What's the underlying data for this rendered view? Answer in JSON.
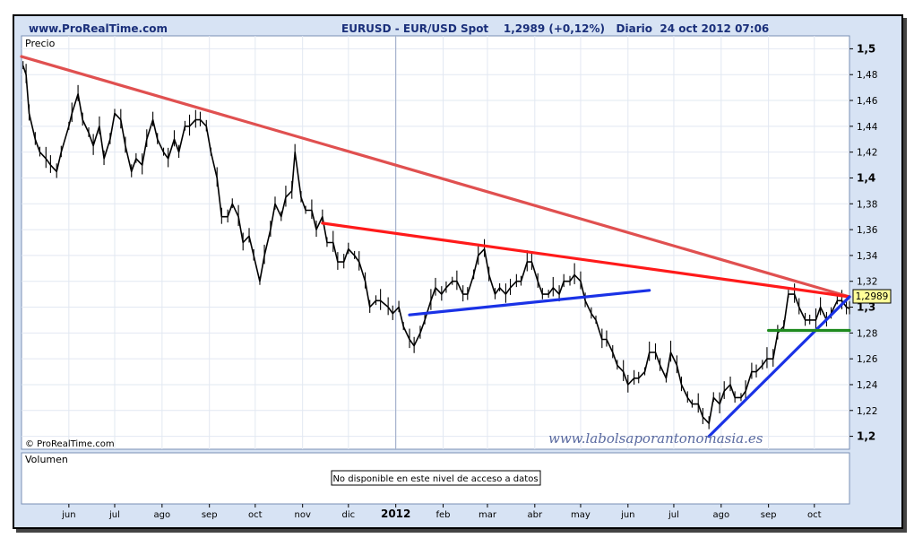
{
  "header": {
    "site": "www.ProRealTime.com",
    "title": "EURUSD - EUR/USD Spot    1,2989 (+0,12%)   Diario  24 oct 2012 07:06"
  },
  "price_panel": {
    "label": "Precio",
    "copyright": "© ProRealTime.com",
    "current_price_tag": "1,2989",
    "watermark": "www.labolsaporantonomasia.es"
  },
  "volume_panel": {
    "label": "Volumen",
    "notice": "No disponible en este nivel de acceso a datos"
  },
  "colors": {
    "background": "#d7e3f4",
    "plot_bg": "#ffffff",
    "price": "#000000",
    "trend_long": "#e05050",
    "trend_red": "#ff1a1a",
    "support_blue": "#1a32e6",
    "support_green": "#1f8a1f"
  },
  "chart_data": {
    "type": "line",
    "title": "EURUSD - EUR/USD Spot",
    "ylabel": "Precio",
    "ylim": [
      1.19,
      1.51
    ],
    "y_ticks": [
      1.2,
      1.22,
      1.24,
      1.26,
      1.28,
      1.3,
      1.32,
      1.34,
      1.36,
      1.38,
      1.4,
      1.42,
      1.44,
      1.46,
      1.48,
      1.5
    ],
    "y_tick_labels": [
      "1,2",
      "1,22",
      "1,24",
      "1,26",
      "1,28",
      "1,3",
      "1,32",
      "1,34",
      "1,36",
      "1,38",
      "1,4",
      "1,42",
      "1,44",
      "1,46",
      "1,48",
      "1,5"
    ],
    "bold_ticks": [
      1.2,
      1.3,
      1.4,
      1.5
    ],
    "x_range": [
      "2011-05-01",
      "2012-10-24"
    ],
    "x_ticks": [
      {
        "date": "2011-06-01",
        "label": "jun"
      },
      {
        "date": "2011-07-01",
        "label": "jul"
      },
      {
        "date": "2011-08-01",
        "label": "ago"
      },
      {
        "date": "2011-09-01",
        "label": "sep"
      },
      {
        "date": "2011-10-01",
        "label": "oct"
      },
      {
        "date": "2011-11-01",
        "label": "nov"
      },
      {
        "date": "2011-12-01",
        "label": "dic"
      },
      {
        "date": "2012-01-01",
        "label": "2012",
        "bold": true
      },
      {
        "date": "2012-02-01",
        "label": "feb"
      },
      {
        "date": "2012-03-01",
        "label": "mar"
      },
      {
        "date": "2012-04-01",
        "label": "abr"
      },
      {
        "date": "2012-05-01",
        "label": "may"
      },
      {
        "date": "2012-06-01",
        "label": "jun"
      },
      {
        "date": "2012-07-01",
        "label": "jul"
      },
      {
        "date": "2012-08-01",
        "label": "ago"
      },
      {
        "date": "2012-09-01",
        "label": "sep"
      },
      {
        "date": "2012-10-01",
        "label": "oct"
      }
    ],
    "series": [
      {
        "type": "ohlc-bars",
        "points": [
          [
            "2011-05-02",
            1.487
          ],
          [
            "2011-05-04",
            1.48
          ],
          [
            "2011-05-06",
            1.45
          ],
          [
            "2011-05-10",
            1.43
          ],
          [
            "2011-05-13",
            1.42
          ],
          [
            "2011-05-17",
            1.415
          ],
          [
            "2011-05-20",
            1.41
          ],
          [
            "2011-05-24",
            1.405
          ],
          [
            "2011-05-27",
            1.42
          ],
          [
            "2011-06-01",
            1.44
          ],
          [
            "2011-06-03",
            1.45
          ],
          [
            "2011-06-07",
            1.465
          ],
          [
            "2011-06-10",
            1.445
          ],
          [
            "2011-06-14",
            1.435
          ],
          [
            "2011-06-17",
            1.425
          ],
          [
            "2011-06-21",
            1.44
          ],
          [
            "2011-06-24",
            1.415
          ],
          [
            "2011-06-28",
            1.43
          ],
          [
            "2011-07-01",
            1.45
          ],
          [
            "2011-07-05",
            1.445
          ],
          [
            "2011-07-08",
            1.425
          ],
          [
            "2011-07-12",
            1.405
          ],
          [
            "2011-07-15",
            1.415
          ],
          [
            "2011-07-19",
            1.41
          ],
          [
            "2011-07-22",
            1.43
          ],
          [
            "2011-07-26",
            1.445
          ],
          [
            "2011-07-29",
            1.43
          ],
          [
            "2011-08-02",
            1.42
          ],
          [
            "2011-08-05",
            1.415
          ],
          [
            "2011-08-09",
            1.43
          ],
          [
            "2011-08-12",
            1.42
          ],
          [
            "2011-08-16",
            1.44
          ],
          [
            "2011-08-19",
            1.44
          ],
          [
            "2011-08-23",
            1.445
          ],
          [
            "2011-08-26",
            1.445
          ],
          [
            "2011-08-30",
            1.44
          ],
          [
            "2011-09-02",
            1.42
          ],
          [
            "2011-09-06",
            1.4
          ],
          [
            "2011-09-09",
            1.37
          ],
          [
            "2011-09-13",
            1.37
          ],
          [
            "2011-09-16",
            1.38
          ],
          [
            "2011-09-20",
            1.37
          ],
          [
            "2011-09-23",
            1.35
          ],
          [
            "2011-09-27",
            1.355
          ],
          [
            "2011-09-30",
            1.34
          ],
          [
            "2011-10-04",
            1.32
          ],
          [
            "2011-10-07",
            1.34
          ],
          [
            "2011-10-11",
            1.36
          ],
          [
            "2011-10-14",
            1.38
          ],
          [
            "2011-10-18",
            1.37
          ],
          [
            "2011-10-21",
            1.385
          ],
          [
            "2011-10-25",
            1.39
          ],
          [
            "2011-10-27",
            1.42
          ],
          [
            "2011-10-31",
            1.385
          ],
          [
            "2011-11-03",
            1.375
          ],
          [
            "2011-11-07",
            1.375
          ],
          [
            "2011-11-10",
            1.36
          ],
          [
            "2011-11-14",
            1.37
          ],
          [
            "2011-11-17",
            1.35
          ],
          [
            "2011-11-21",
            1.35
          ],
          [
            "2011-11-24",
            1.335
          ],
          [
            "2011-11-28",
            1.335
          ],
          [
            "2011-12-01",
            1.345
          ],
          [
            "2011-12-05",
            1.34
          ],
          [
            "2011-12-08",
            1.335
          ],
          [
            "2011-12-12",
            1.32
          ],
          [
            "2011-12-15",
            1.3
          ],
          [
            "2011-12-19",
            1.305
          ],
          [
            "2011-12-22",
            1.305
          ],
          [
            "2011-12-27",
            1.3
          ],
          [
            "2011-12-30",
            1.295
          ],
          [
            "2012-01-03",
            1.3
          ],
          [
            "2012-01-06",
            1.285
          ],
          [
            "2012-01-10",
            1.275
          ],
          [
            "2012-01-13",
            1.27
          ],
          [
            "2012-01-17",
            1.28
          ],
          [
            "2012-01-20",
            1.29
          ],
          [
            "2012-01-24",
            1.305
          ],
          [
            "2012-01-27",
            1.315
          ],
          [
            "2012-01-31",
            1.31
          ],
          [
            "2012-02-03",
            1.315
          ],
          [
            "2012-02-07",
            1.32
          ],
          [
            "2012-02-10",
            1.32
          ],
          [
            "2012-02-14",
            1.31
          ],
          [
            "2012-02-17",
            1.31
          ],
          [
            "2012-02-21",
            1.325
          ],
          [
            "2012-02-24",
            1.34
          ],
          [
            "2012-02-28",
            1.345
          ],
          [
            "2012-03-02",
            1.325
          ],
          [
            "2012-03-06",
            1.31
          ],
          [
            "2012-03-09",
            1.315
          ],
          [
            "2012-03-13",
            1.31
          ],
          [
            "2012-03-16",
            1.315
          ],
          [
            "2012-03-20",
            1.32
          ],
          [
            "2012-03-23",
            1.32
          ],
          [
            "2012-03-27",
            1.335
          ],
          [
            "2012-03-30",
            1.335
          ],
          [
            "2012-04-03",
            1.32
          ],
          [
            "2012-04-06",
            1.31
          ],
          [
            "2012-04-10",
            1.31
          ],
          [
            "2012-04-13",
            1.315
          ],
          [
            "2012-04-17",
            1.31
          ],
          [
            "2012-04-20",
            1.32
          ],
          [
            "2012-04-24",
            1.32
          ],
          [
            "2012-04-27",
            1.325
          ],
          [
            "2012-05-01",
            1.32
          ],
          [
            "2012-05-04",
            1.305
          ],
          [
            "2012-05-08",
            1.295
          ],
          [
            "2012-05-11",
            1.29
          ],
          [
            "2012-05-15",
            1.275
          ],
          [
            "2012-05-18",
            1.275
          ],
          [
            "2012-05-22",
            1.265
          ],
          [
            "2012-05-25",
            1.255
          ],
          [
            "2012-05-29",
            1.25
          ],
          [
            "2012-06-01",
            1.24
          ],
          [
            "2012-06-05",
            1.245
          ],
          [
            "2012-06-08",
            1.245
          ],
          [
            "2012-06-12",
            1.25
          ],
          [
            "2012-06-15",
            1.265
          ],
          [
            "2012-06-19",
            1.265
          ],
          [
            "2012-06-22",
            1.255
          ],
          [
            "2012-06-26",
            1.245
          ],
          [
            "2012-06-29",
            1.265
          ],
          [
            "2012-07-03",
            1.255
          ],
          [
            "2012-07-06",
            1.24
          ],
          [
            "2012-07-10",
            1.23
          ],
          [
            "2012-07-13",
            1.225
          ],
          [
            "2012-07-17",
            1.225
          ],
          [
            "2012-07-20",
            1.215
          ],
          [
            "2012-07-24",
            1.21
          ],
          [
            "2012-07-27",
            1.23
          ],
          [
            "2012-07-31",
            1.225
          ],
          [
            "2012-08-03",
            1.235
          ],
          [
            "2012-08-07",
            1.24
          ],
          [
            "2012-08-10",
            1.23
          ],
          [
            "2012-08-14",
            1.23
          ],
          [
            "2012-08-17",
            1.235
          ],
          [
            "2012-08-21",
            1.25
          ],
          [
            "2012-08-24",
            1.25
          ],
          [
            "2012-08-28",
            1.255
          ],
          [
            "2012-08-31",
            1.26
          ],
          [
            "2012-09-04",
            1.26
          ],
          [
            "2012-09-07",
            1.28
          ],
          [
            "2012-09-11",
            1.285
          ],
          [
            "2012-09-14",
            1.31
          ],
          [
            "2012-09-18",
            1.31
          ],
          [
            "2012-09-21",
            1.3
          ],
          [
            "2012-09-25",
            1.29
          ],
          [
            "2012-09-28",
            1.29
          ],
          [
            "2012-10-02",
            1.29
          ],
          [
            "2012-10-05",
            1.3
          ],
          [
            "2012-10-09",
            1.29
          ],
          [
            "2012-10-12",
            1.295
          ],
          [
            "2012-10-16",
            1.305
          ],
          [
            "2012-10-19",
            1.305
          ],
          [
            "2012-10-22",
            1.3
          ],
          [
            "2012-10-24",
            1.2989
          ]
        ]
      }
    ],
    "annotations": [
      {
        "type": "trendline",
        "color": "#e05050",
        "from": [
          "2011-05-01",
          1.494
        ],
        "to": [
          "2012-10-24",
          1.308
        ]
      },
      {
        "type": "trendline",
        "color": "#ff1a1a",
        "from": [
          "2011-11-14",
          1.365
        ],
        "to": [
          "2012-10-24",
          1.308
        ]
      },
      {
        "type": "trendline",
        "color": "#1a32e6",
        "from": [
          "2012-01-10",
          1.294
        ],
        "to": [
          "2012-06-15",
          1.313
        ]
      },
      {
        "type": "trendline",
        "color": "#1a32e6",
        "from": [
          "2012-07-24",
          1.2
        ],
        "to": [
          "2012-10-24",
          1.308
        ]
      },
      {
        "type": "hline",
        "color": "#1f8a1f",
        "from": [
          "2012-09-01",
          1.282
        ],
        "to": [
          "2012-10-24",
          1.282
        ]
      }
    ]
  }
}
